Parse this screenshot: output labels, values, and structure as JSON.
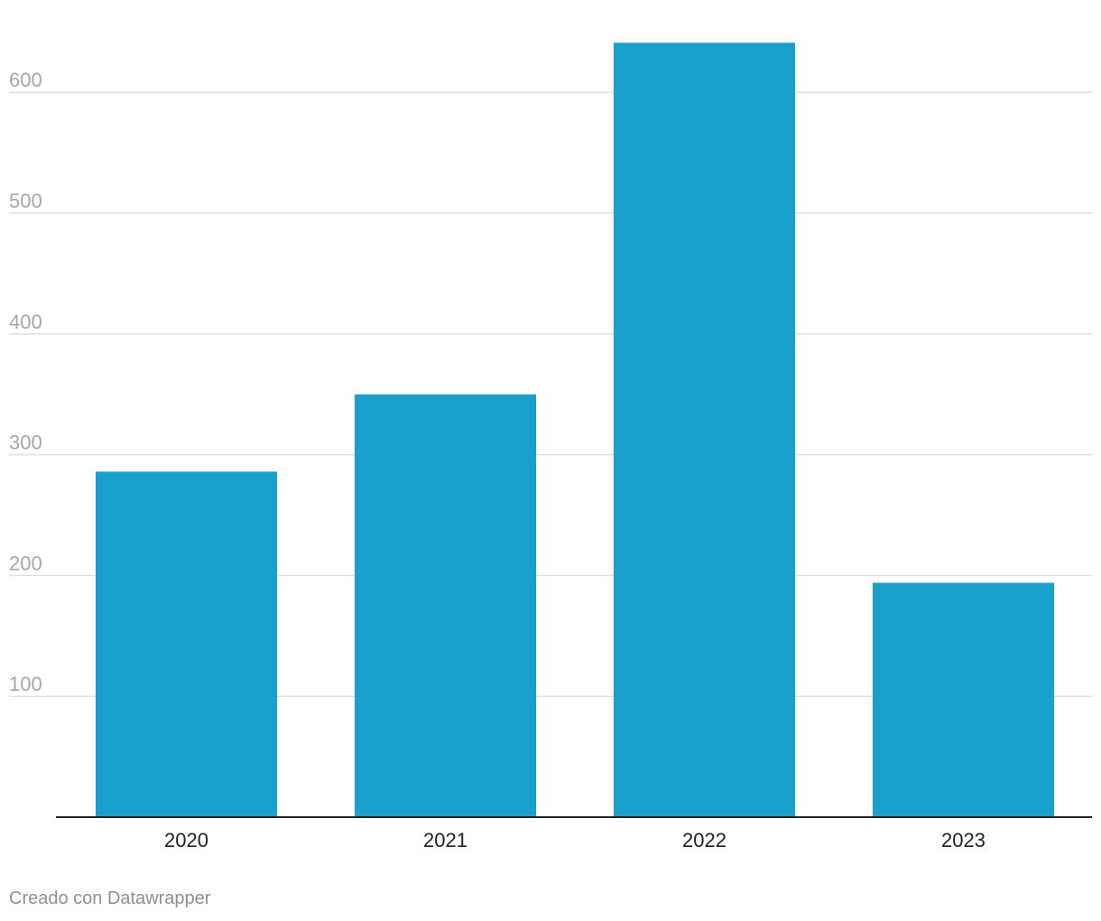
{
  "chart_data": {
    "type": "bar",
    "categories": [
      "2020",
      "2021",
      "2022",
      "2023"
    ],
    "values": [
      286,
      350,
      641,
      194
    ],
    "yticks": [
      100,
      200,
      300,
      400,
      500,
      600
    ],
    "ylim": [
      0,
      660
    ],
    "grid": true,
    "bar_color": "#19a0cd"
  },
  "footer": {
    "credit": "Creado con Datawrapper"
  }
}
